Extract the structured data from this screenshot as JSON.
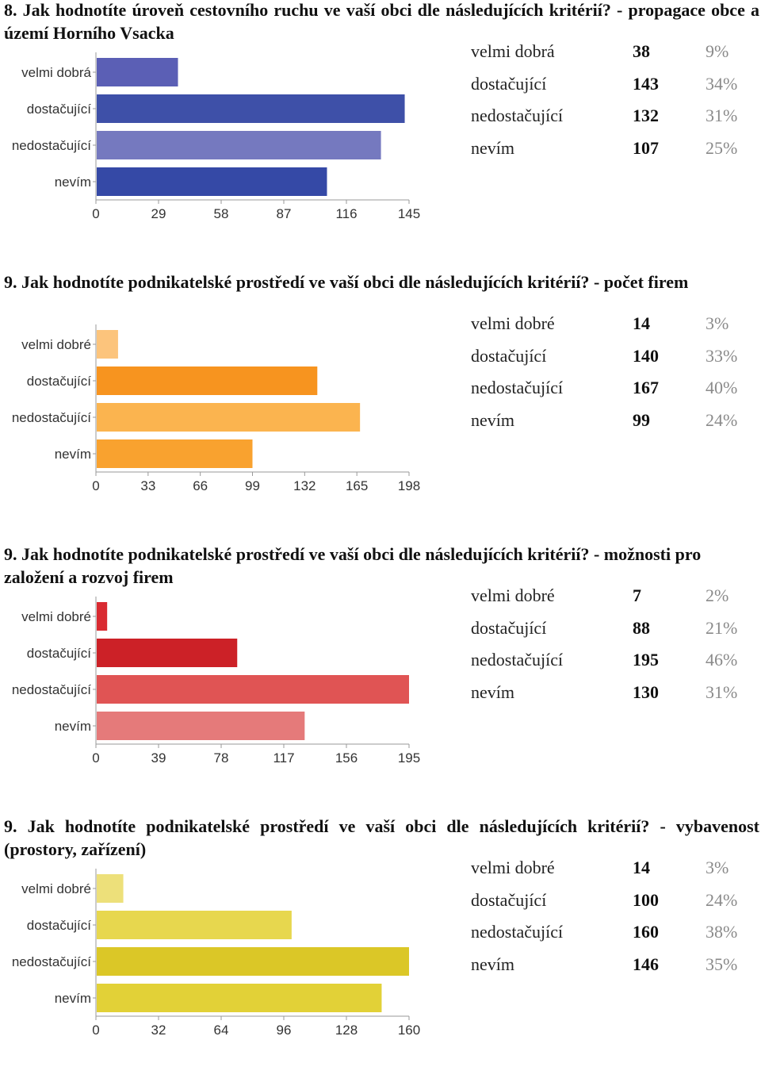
{
  "charts": [
    {
      "title": "8. Jak hodnotíte úroveň cestovního ruchu ve vaší obci dle následujících kritérií? - propagace obce a území Horního Vsacka",
      "categories": [
        "velmi dobrá",
        "dostačující",
        "nedostačující",
        "nevím"
      ],
      "values": [
        38,
        143,
        132,
        107
      ],
      "percents": [
        "9%",
        "34%",
        "31%",
        "25%"
      ],
      "ticks": [
        "0",
        "29",
        "58",
        "87",
        "116",
        "145"
      ],
      "xmax": 145,
      "colors": [
        "#5b5fb5",
        "#3e50a8",
        "#7579bf",
        "#3549a6"
      ]
    },
    {
      "title": "9. Jak hodnotíte podnikatelské prostředí ve vaší obci dle následujících kritérií? - počet firem",
      "categories": [
        "velmi dobré",
        "dostačující",
        "nedostačující",
        "nevím"
      ],
      "values": [
        14,
        140,
        167,
        99
      ],
      "percents": [
        "3%",
        "33%",
        "40%",
        "24%"
      ],
      "ticks": [
        "0",
        "33",
        "66",
        "99",
        "132",
        "165",
        "198"
      ],
      "xmax": 198,
      "colors": [
        "#fcc47c",
        "#f7941f",
        "#fbb44f",
        "#f9a22f"
      ]
    },
    {
      "title": "9. Jak hodnotíte podnikatelské prostředí ve vaší obci dle následujících kritérií? - možnosti pro založení a rozvoj firem",
      "categories": [
        "velmi dobré",
        "dostačující",
        "nedostačující",
        "nevím"
      ],
      "values": [
        7,
        88,
        195,
        130
      ],
      "percents": [
        "2%",
        "21%",
        "46%",
        "31%"
      ],
      "ticks": [
        "0",
        "39",
        "78",
        "117",
        "156",
        "195"
      ],
      "xmax": 195,
      "colors": [
        "#d92a31",
        "#cc2127",
        "#e05454",
        "#e57a7a"
      ]
    },
    {
      "title": "9. Jak hodnotíte podnikatelské prostředí ve vaší obci dle následujících kritérií? - vybavenost (prostory, zařízení)",
      "categories": [
        "velmi dobré",
        "dostačující",
        "nedostačující",
        "nevím"
      ],
      "values": [
        14,
        100,
        160,
        146
      ],
      "percents": [
        "3%",
        "24%",
        "38%",
        "35%"
      ],
      "ticks": [
        "0",
        "32",
        "64",
        "96",
        "128",
        "160"
      ],
      "xmax": 160,
      "colors": [
        "#ede07a",
        "#e7d74e",
        "#dbc727",
        "#e2d137"
      ]
    }
  ],
  "chart_data": [
    {
      "type": "bar",
      "title": "8. Jak hodnotíte úroveň cestovního ruchu ve vaší obci dle následujících kritérií? - propagace obce a území Horního Vsacka",
      "categories": [
        "velmi dobrá",
        "dostačující",
        "nedostačující",
        "nevím"
      ],
      "values": [
        38,
        143,
        132,
        107
      ],
      "xlim": [
        0,
        145
      ]
    },
    {
      "type": "bar",
      "title": "9. Jak hodnotíte podnikatelské prostředí ve vaší obci dle následujících kritérií? - počet firem",
      "categories": [
        "velmi dobré",
        "dostačující",
        "nedostačující",
        "nevím"
      ],
      "values": [
        14,
        140,
        167,
        99
      ],
      "xlim": [
        0,
        198
      ]
    },
    {
      "type": "bar",
      "title": "9. Jak hodnotíte podnikatelské prostředí ve vaší obci dle následujících kritérií? - možnosti pro založení a rozvoj firem",
      "categories": [
        "velmi dobré",
        "dostačující",
        "nedostačující",
        "nevím"
      ],
      "values": [
        7,
        88,
        195,
        130
      ],
      "xlim": [
        0,
        195
      ]
    },
    {
      "type": "bar",
      "title": "9. Jak hodnotíte podnikatelské prostředí ve vaší obci dle následujících kritérií? - vybavenost (prostory, zařízení)",
      "categories": [
        "velmi dobré",
        "dostačující",
        "nedostačující",
        "nevím"
      ],
      "values": [
        14,
        100,
        160,
        146
      ],
      "xlim": [
        0,
        160
      ]
    }
  ]
}
